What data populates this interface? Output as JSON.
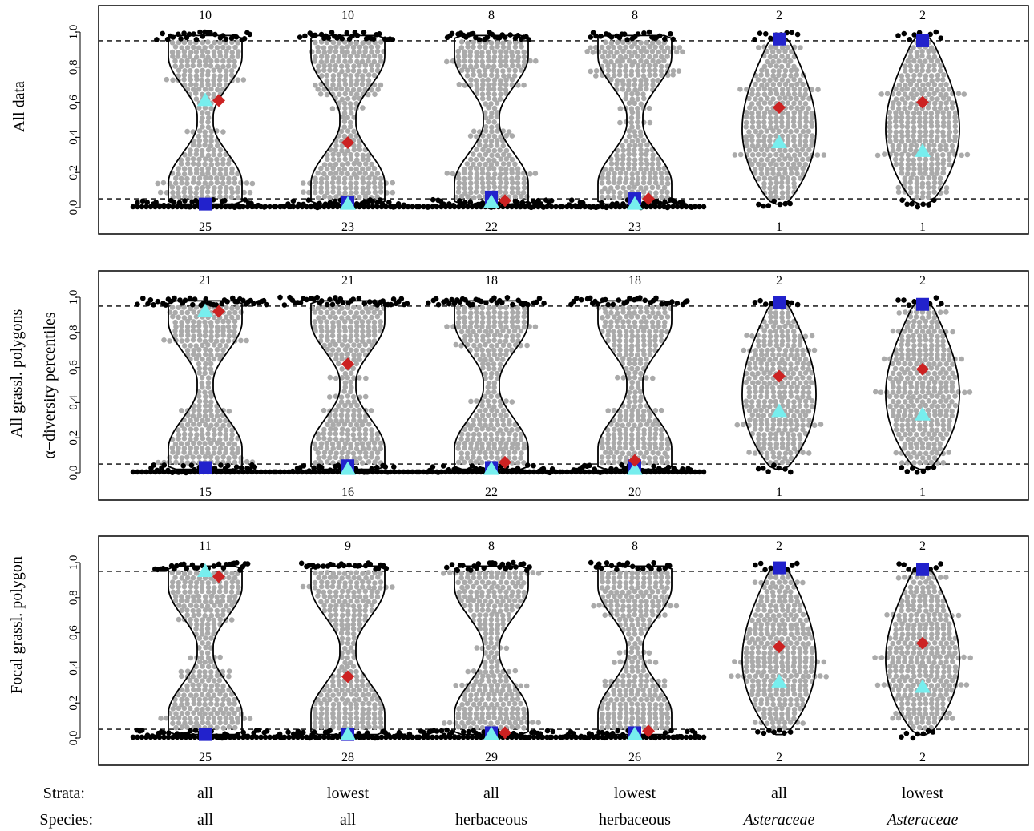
{
  "colors": {
    "frame": "#000000",
    "violin": "#000000",
    "dashed": "#000000",
    "point_inside": "#aaaaaa",
    "point_outside": "#000000",
    "diamond": "#cc2222",
    "triangle": "#77eeee",
    "square": "#2222cc"
  },
  "bottom_labels": {
    "strata_title": "Strata:",
    "species_title": "Species:",
    "strata": [
      "all",
      "lowest",
      "all",
      "lowest",
      "all",
      "lowest"
    ],
    "species": [
      "all",
      "all",
      "herbaceous",
      "herbaceous",
      "Asteraceae",
      "Asteraceae"
    ],
    "species_italic": [
      false,
      false,
      false,
      false,
      true,
      true
    ]
  },
  "shared_ylabel": "α−diversity percentiles",
  "chart_data": [
    {
      "type": "violin-beeswarm",
      "ylabel": "All data",
      "ylim": [
        0,
        1
      ],
      "yticks": [
        0.0,
        0.2,
        0.4,
        0.6,
        0.8,
        1.0
      ],
      "tick_labels": [
        "0.0",
        "0.2",
        "0.4",
        "0.6",
        "0.8",
        "1.0"
      ],
      "reference_lines": [
        0.05,
        0.95
      ],
      "top_counts": [
        "10",
        "10",
        "8",
        "8",
        "2",
        "2"
      ],
      "bottom_counts": [
        "25",
        "23",
        "22",
        "23",
        "1",
        "1"
      ],
      "groups": [
        {
          "shape": "hourglass",
          "diamond": 0.61,
          "triangle": 0.61,
          "square": 0.02
        },
        {
          "shape": "hourglass",
          "diamond": 0.37,
          "triangle": 0.02,
          "square": 0.03
        },
        {
          "shape": "hourglass",
          "diamond": 0.04,
          "triangle": 0.03,
          "square": 0.06
        },
        {
          "shape": "hourglass",
          "diamond": 0.05,
          "triangle": 0.02,
          "square": 0.05
        },
        {
          "shape": "lemon",
          "diamond": 0.57,
          "triangle": 0.37,
          "square": 0.96
        },
        {
          "shape": "lemon",
          "diamond": 0.6,
          "triangle": 0.32,
          "square": 0.95
        }
      ]
    },
    {
      "type": "violin-beeswarm",
      "ylabel": "All grassl. polygons",
      "ylim": [
        0,
        1
      ],
      "yticks": [
        0.0,
        0.2,
        0.4,
        0.6,
        0.8,
        1.0
      ],
      "tick_labels": [
        "0.0",
        "0.2",
        "0.4",
        "0.6",
        "0.8",
        "1.0"
      ],
      "reference_lines": [
        0.05,
        0.95
      ],
      "top_counts": [
        "21",
        "21",
        "18",
        "18",
        "2",
        "2"
      ],
      "bottom_counts": [
        "15",
        "16",
        "22",
        "20",
        "1",
        "1"
      ],
      "groups": [
        {
          "shape": "hourglass",
          "diamond": 0.92,
          "triangle": 0.92,
          "square": 0.03
        },
        {
          "shape": "hourglass",
          "diamond": 0.62,
          "triangle": 0.02,
          "square": 0.04
        },
        {
          "shape": "hourglass",
          "diamond": 0.06,
          "triangle": 0.02,
          "square": 0.03
        },
        {
          "shape": "hourglass",
          "diamond": 0.07,
          "triangle": 0.02,
          "square": 0.04
        },
        {
          "shape": "lemon",
          "diamond": 0.55,
          "triangle": 0.35,
          "square": 0.97
        },
        {
          "shape": "lemon",
          "diamond": 0.59,
          "triangle": 0.33,
          "square": 0.96
        }
      ]
    },
    {
      "type": "violin-beeswarm",
      "ylabel": "Focal grassl. polygon",
      "ylim": [
        0,
        1
      ],
      "yticks": [
        0.0,
        0.2,
        0.4,
        0.6,
        0.8,
        1.0
      ],
      "tick_labels": [
        "0.0",
        "0.2",
        "0.4",
        "0.6",
        "0.8",
        "1.0"
      ],
      "reference_lines": [
        0.05,
        0.95
      ],
      "top_counts": [
        "11",
        "9",
        "8",
        "8",
        "2",
        "2"
      ],
      "bottom_counts": [
        "25",
        "28",
        "29",
        "26",
        "2",
        "2"
      ],
      "groups": [
        {
          "shape": "hourglass",
          "diamond": 0.92,
          "triangle": 0.95,
          "square": 0.02
        },
        {
          "shape": "hourglass",
          "diamond": 0.35,
          "triangle": 0.02,
          "square": 0.02
        },
        {
          "shape": "hourglass",
          "diamond": 0.03,
          "triangle": 0.02,
          "square": 0.03
        },
        {
          "shape": "hourglass",
          "diamond": 0.04,
          "triangle": 0.02,
          "square": 0.03
        },
        {
          "shape": "lemon",
          "diamond": 0.52,
          "triangle": 0.32,
          "square": 0.97
        },
        {
          "shape": "lemon",
          "diamond": 0.54,
          "triangle": 0.29,
          "square": 0.96
        }
      ]
    }
  ]
}
